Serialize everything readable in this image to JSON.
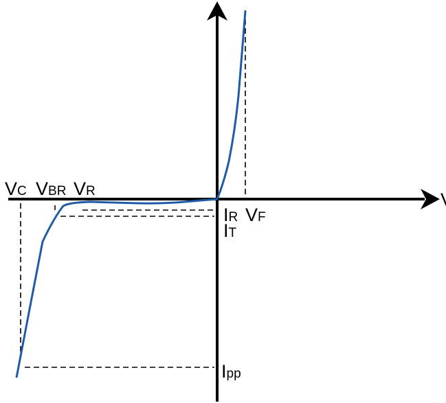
{
  "colors": {
    "curve": "#1f5aa6",
    "axes": "#000000"
  },
  "labels": {
    "vc": {
      "main": "V",
      "sub": "C"
    },
    "vbr": {
      "main": "V",
      "sub": "BR"
    },
    "vr": {
      "main": "V",
      "sub": "R"
    },
    "vf": {
      "main": "V",
      "sub": "F"
    },
    "ir": {
      "main": "I",
      "sub": "R"
    },
    "it": {
      "main": "I",
      "sub": "T"
    },
    "ipp": {
      "main": "I",
      "sub": "pp"
    },
    "x_axis": "V"
  }
}
